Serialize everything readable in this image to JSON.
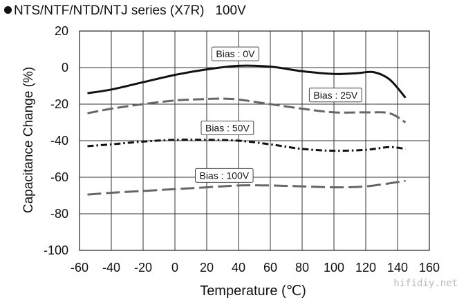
{
  "chart_data": {
    "type": "line",
    "title": "NTS/NTF/NTD/NTJ series (X7R)   100V",
    "xlabel": "Temperature (℃)",
    "ylabel": "Capacitance Change (%)",
    "xlim": [
      -60,
      160
    ],
    "ylim": [
      -100,
      20
    ],
    "xticks": [
      -60,
      -40,
      -20,
      0,
      20,
      40,
      60,
      80,
      100,
      120,
      140,
      160
    ],
    "yticks": [
      20,
      0,
      -20,
      -40,
      -60,
      -80,
      -100
    ],
    "grid": true,
    "series": [
      {
        "name": "Bias : 0V",
        "style": "solid",
        "color": "#111111",
        "x": [
          -55,
          -40,
          -20,
          0,
          20,
          40,
          60,
          80,
          100,
          115,
          125,
          135,
          145
        ],
        "y": [
          -14,
          -12,
          -8,
          -4,
          -1,
          1,
          0.5,
          -2,
          -3.5,
          -3,
          -2.5,
          -6.5,
          -16.5
        ]
      },
      {
        "name": "Bias : 25V",
        "style": "dashed",
        "color": "#666666",
        "x": [
          -55,
          -40,
          -20,
          0,
          20,
          30,
          40,
          60,
          80,
          100,
          120,
          135,
          145
        ],
        "y": [
          -25,
          -22.5,
          -20,
          -18,
          -17.2,
          -17,
          -17.5,
          -20,
          -22.5,
          -24.5,
          -24.5,
          -25,
          -30
        ]
      },
      {
        "name": "Bias : 50V",
        "style": "dash-dot",
        "color": "#111111",
        "x": [
          -55,
          -40,
          -20,
          0,
          20,
          40,
          60,
          80,
          100,
          120,
          135,
          145
        ],
        "y": [
          -43,
          -42,
          -40.5,
          -39.5,
          -39.5,
          -40,
          -42,
          -44.5,
          -45.5,
          -45,
          -43.5,
          -44.5
        ]
      },
      {
        "name": "Bias : 100V",
        "style": "long-dash",
        "color": "#666666",
        "x": [
          -55,
          -40,
          -20,
          0,
          20,
          40,
          60,
          80,
          100,
          120,
          145
        ],
        "y": [
          -69.5,
          -68.5,
          -67.5,
          -66.5,
          -65.5,
          -64.5,
          -64.5,
          -65,
          -65.5,
          -65,
          -62
        ]
      }
    ],
    "annotations": [
      {
        "text": "Bias : 0V",
        "x": 38,
        "y": 7.5
      },
      {
        "text": "Bias : 25V",
        "x": 101,
        "y": -15
      },
      {
        "text": "Bias : 50V",
        "x": 33,
        "y": -33
      },
      {
        "text": "Bias : 100V",
        "x": 31,
        "y": -59
      }
    ]
  },
  "watermark": "hifidiy.net"
}
